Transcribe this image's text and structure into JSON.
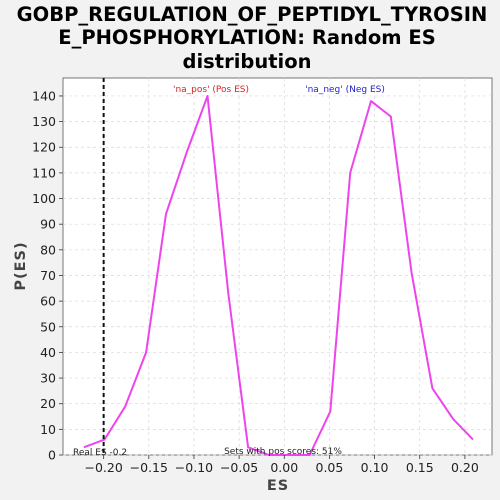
{
  "chart_data": {
    "type": "line",
    "title_lines": [
      "GOBP_REGULATION_OF_PEPTIDYL_TYROSIN",
      "E_PHOSPHORYLATION: Random ES",
      "distribution"
    ],
    "xlabel": "ES",
    "ylabel": "P(ES)",
    "xlim": [
      -0.245,
      0.23
    ],
    "ylim": [
      0,
      147
    ],
    "x_ticks": [
      -0.2,
      -0.15,
      -0.1,
      -0.05,
      0.0,
      0.05,
      0.1,
      0.15,
      0.2
    ],
    "x_tick_labels": [
      "−0.20",
      "−0.15",
      "−0.10",
      "−0.05",
      "0.00",
      "0.05",
      "0.10",
      "0.15",
      "0.20"
    ],
    "y_ticks": [
      0,
      10,
      20,
      30,
      40,
      50,
      60,
      70,
      80,
      90,
      100,
      110,
      120,
      130,
      140
    ],
    "y_tick_labels": [
      "0",
      "10",
      "20",
      "30",
      "40",
      "50",
      "60",
      "70",
      "80",
      "90",
      "100",
      "110",
      "120",
      "130",
      "140"
    ],
    "grid": true,
    "series": [
      {
        "color": "#ee44ee",
        "x": [
          -0.222,
          -0.199,
          -0.176,
          -0.153,
          -0.131,
          -0.108,
          -0.085,
          -0.062,
          -0.04,
          -0.017,
          0.005,
          0.028,
          0.051,
          0.073,
          0.096,
          0.118,
          0.141,
          0.164,
          0.187,
          0.209
        ],
        "y": [
          3,
          6,
          19,
          40,
          94,
          118,
          140,
          63,
          3,
          0,
          0,
          0,
          17,
          110,
          138,
          132,
          71,
          26,
          14,
          6
        ]
      }
    ],
    "real_es": {
      "x": -0.2,
      "label": "Real ES -0.2"
    },
    "annotations": {
      "pos_label": "'na_pos' (Pos ES)",
      "neg_label": "'na_neg' (Neg ES)",
      "pos_color": "#dd2222",
      "neg_color": "#2222cc",
      "scores_text": "Sets with pos scores: 51%"
    }
  }
}
